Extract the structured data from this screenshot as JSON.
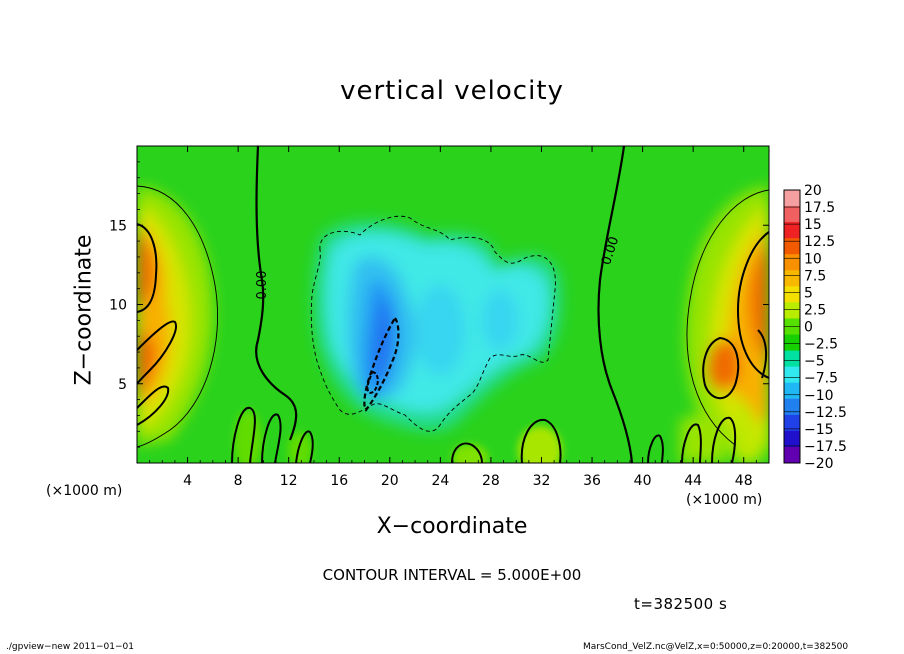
{
  "chart_data": {
    "type": "heatmap",
    "title": "vertical velocity",
    "xlabel": "X−coordinate",
    "ylabel": "Z−coordinate",
    "x_unit_left": "(×1000 m)",
    "x_unit_right": "(×1000 m)",
    "xlim": [
      0,
      50
    ],
    "ylim": [
      0,
      20
    ],
    "x_ticks": [
      4,
      8,
      12,
      16,
      20,
      24,
      28,
      32,
      36,
      40,
      44,
      48
    ],
    "y_ticks": [
      5,
      10,
      15
    ],
    "x_tick_labels": [
      "4",
      "8",
      "12",
      "16",
      "20",
      "24",
      "28",
      "32",
      "36",
      "40",
      "44",
      "48"
    ],
    "y_tick_labels": [
      "5",
      "10",
      "15"
    ],
    "contour_labels": [
      "0.00",
      "0.00"
    ],
    "colorbar": {
      "levels": [
        20,
        17.5,
        15,
        12.5,
        10,
        7.5,
        5,
        2.5,
        0,
        -2.5,
        -5,
        -7.5,
        -10,
        -12.5,
        -15,
        -17.5,
        -20
      ],
      "labels": [
        "20",
        "17.5",
        "15",
        "12.5",
        "10",
        "7.5",
        "5",
        "2.5",
        "0",
        "−2.5",
        "−5",
        "−7.5",
        "−10",
        "−12.5",
        "−15",
        "−17.5",
        "−20"
      ],
      "colors": [
        "#f4a0a0",
        "#f06060",
        "#ee2222",
        "#f25a00",
        "#f89000",
        "#f8b800",
        "#f4e000",
        "#b8ec00",
        "#56e000",
        "#16d000",
        "#00e0a0",
        "#30e8ee",
        "#20b8f4",
        "#2080f0",
        "#2040e8",
        "#2010cc",
        "#6000b0"
      ]
    },
    "contour_interval": "CONTOUR INTERVAL = 5.000E+00",
    "time": "t=382500 s"
  },
  "footer": {
    "left": "./gpview−new  2011−01−01",
    "right": "MarsCond_VelZ.nc@VelZ,x=0:50000,z=0:20000,t=382500"
  }
}
